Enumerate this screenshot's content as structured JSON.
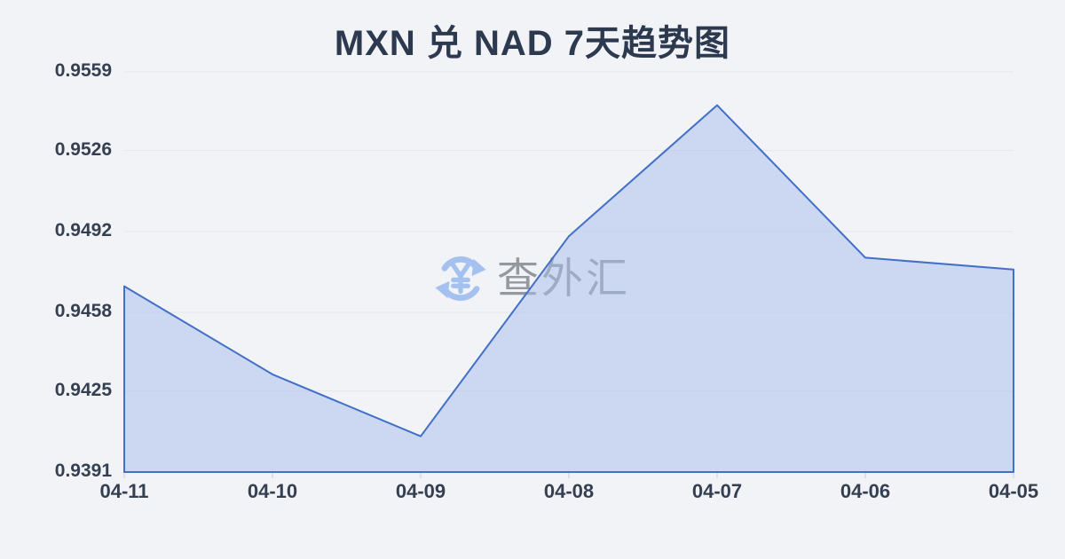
{
  "page": {
    "background_color": "#f1f3f6"
  },
  "header": {
    "title": "MXN 兑 NAD 7天趋势图",
    "title_color": "#2c394f"
  },
  "watermark": {
    "text": "查外汇",
    "icon": "currency-exchange-refresh-icon",
    "icon_color": "#a5c1f0",
    "text_color": "#94999f"
  },
  "chart_data": {
    "type": "area",
    "title": "MXN 兑 NAD 7天趋势图",
    "series_name": "MXN/NAD",
    "categories": [
      "04-11",
      "04-10",
      "04-09",
      "04-08",
      "04-07",
      "04-06",
      "04-05"
    ],
    "values": [
      0.9469,
      0.9432,
      0.9406,
      0.949,
      0.9545,
      0.9481,
      0.9476
    ],
    "yticks": [
      0.9559,
      0.9526,
      0.9492,
      0.9458,
      0.9425,
      0.9391
    ],
    "ylim": [
      0.9391,
      0.9559
    ],
    "xlabel": "",
    "ylabel": "",
    "grid": true,
    "legend": false,
    "colors": {
      "line": "#4270c6",
      "fill": "rgba(167,190,235,0.5)",
      "grid": "#e5e7ec",
      "tick": "#c9cdd4",
      "axis_label": "#353f52"
    }
  }
}
